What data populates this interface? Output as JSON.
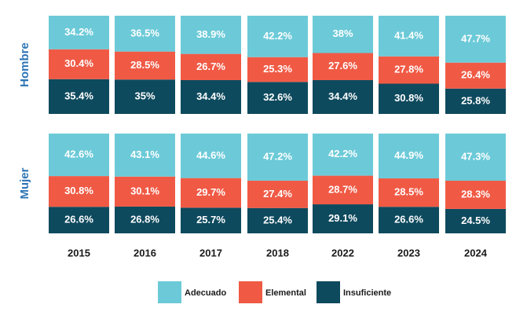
{
  "chart_data": {
    "type": "bar",
    "stacked": true,
    "normalized": true,
    "title": "",
    "xlabel": "",
    "ylabel": "",
    "legend_position": "bottom",
    "categories": [
      "2015",
      "2016",
      "2017",
      "2018",
      "2022",
      "2023",
      "2024"
    ],
    "series_order_bottom_to_top": [
      "Insuficiente",
      "Elemental",
      "Adecuado"
    ],
    "colors": {
      "Adecuado": "#6ccad8",
      "Elemental": "#f05a45",
      "Insuficiente": "#0e4a5e"
    },
    "groups": [
      {
        "name": "Hombre",
        "series": [
          {
            "name": "Adecuado",
            "values": [
              34.2,
              36.5,
              38.9,
              42.2,
              38,
              41.4,
              47.7
            ],
            "labels": [
              "34.2%",
              "36.5%",
              "38.9%",
              "42.2%",
              "38%",
              "41.4%",
              "47.7%"
            ]
          },
          {
            "name": "Elemental",
            "values": [
              30.4,
              28.5,
              26.7,
              25.3,
              27.6,
              27.8,
              26.4
            ],
            "labels": [
              "30.4%",
              "28.5%",
              "26.7%",
              "25.3%",
              "27.6%",
              "27.8%",
              "26.4%"
            ]
          },
          {
            "name": "Insuficiente",
            "values": [
              35.4,
              35,
              34.4,
              32.6,
              34.4,
              30.8,
              25.8
            ],
            "labels": [
              "35.4%",
              "35%",
              "34.4%",
              "32.6%",
              "34.4%",
              "30.8%",
              "25.8%"
            ]
          }
        ]
      },
      {
        "name": "Mujer",
        "series": [
          {
            "name": "Adecuado",
            "values": [
              42.6,
              43.1,
              44.6,
              47.2,
              42.2,
              44.9,
              47.3
            ],
            "labels": [
              "42.6%",
              "43.1%",
              "44.6%",
              "47.2%",
              "42.2%",
              "44.9%",
              "47.3%"
            ]
          },
          {
            "name": "Elemental",
            "values": [
              30.8,
              30.1,
              29.7,
              27.4,
              28.7,
              28.5,
              28.3
            ],
            "labels": [
              "30.8%",
              "30.1%",
              "29.7%",
              "27.4%",
              "28.7%",
              "28.5%",
              "28.3%"
            ]
          },
          {
            "name": "Insuficiente",
            "values": [
              26.6,
              26.8,
              25.7,
              25.4,
              29.1,
              26.6,
              24.5
            ],
            "labels": [
              "26.6%",
              "26.8%",
              "25.7%",
              "25.4%",
              "29.1%",
              "26.6%",
              "24.5%"
            ]
          }
        ]
      }
    ]
  }
}
